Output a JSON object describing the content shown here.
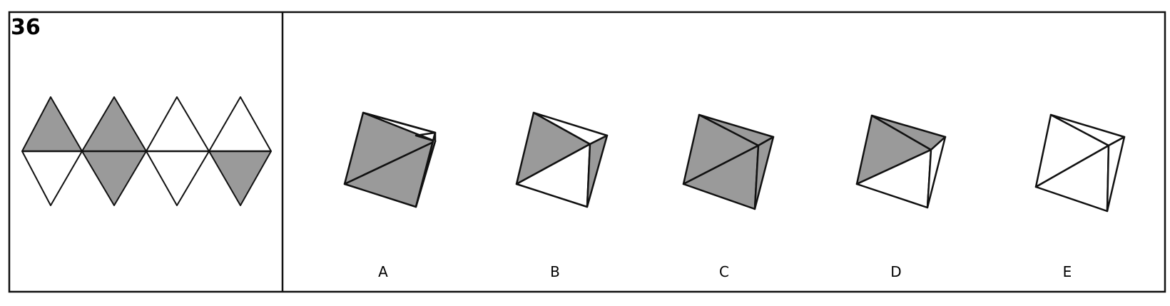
{
  "question": {
    "number": "36"
  },
  "net": {
    "shaded_color": "#9a9a9a",
    "outline_color": "#111111",
    "upper_row_shaded": [
      true,
      true,
      false,
      false
    ],
    "lower_row_shaded": [
      false,
      true,
      false,
      true
    ]
  },
  "options": [
    {
      "label": "A",
      "face_colors": {
        "left_face": "shaded",
        "top_right_face": "white",
        "right_face": "white"
      }
    },
    {
      "label": "B",
      "face_colors": {
        "left_face": "shaded",
        "top_right_face": "white",
        "right_face": "shaded",
        "bottom_face": "white"
      }
    },
    {
      "label": "C",
      "face_colors": {
        "left_face": "shaded",
        "top_right_face": "shaded",
        "right_face": "shaded"
      }
    },
    {
      "label": "D",
      "face_colors": {
        "left_face": "shaded",
        "top_right_face": "shaded",
        "right_face": "white",
        "bottom_face": "white"
      }
    },
    {
      "label": "E",
      "face_colors": {
        "left_face": "white",
        "top_right_face": "white",
        "right_face": "white"
      }
    }
  ]
}
